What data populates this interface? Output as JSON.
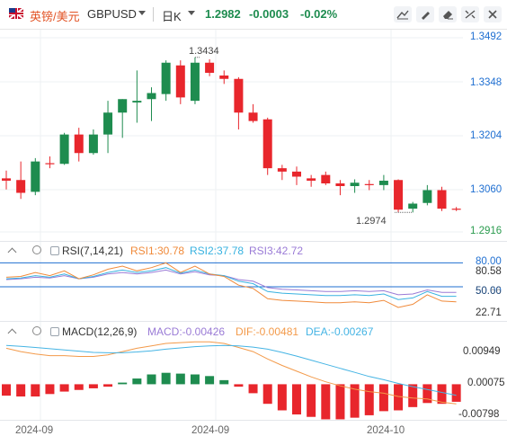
{
  "header": {
    "flag_icon": "uk-us-flag-icon",
    "name": "英镑/美元",
    "symbol": "GBPUSD",
    "period": "日K",
    "last": "1.2982",
    "change": "-0.0003",
    "change_pct": "-0.02%"
  },
  "toolbar": [
    "line-tool-icon",
    "draw-tool-icon",
    "eraser-tool-icon",
    "fullscreen-icon",
    "close-icon"
  ],
  "price_axis": [
    "1.3492",
    "1.3348",
    "1.3204",
    "1.3060",
    "1.2916"
  ],
  "current_price": "1.2916",
  "annotations": {
    "high": "1.3434",
    "low": "1.2974"
  },
  "rsi": {
    "title": "RSI(7,14,21)",
    "rsi1": "RSI1:30.78",
    "rsi2": "RSI2:37.78",
    "rsi3": "RSI3:42.72",
    "axis": [
      "80.00",
      "80.58",
      "50.00",
      "50.66",
      "22.71"
    ]
  },
  "macd": {
    "title": "MACD(12,26,9)",
    "macd": "MACD:-0.00426",
    "dif": "DIF:-0.00481",
    "dea": "DEA:-0.00267",
    "axis": [
      "0.00949",
      "0.00075",
      "-0.00798"
    ]
  },
  "time_axis": [
    "2024-09",
    "2024-09",
    "2024-10"
  ],
  "colors": {
    "up": "#1e8c4f",
    "down": "#e8262c",
    "rsi1": "#f08a3a",
    "rsi2": "#38b2e0",
    "rsi3": "#9a7bd6",
    "dif": "#f39a4a",
    "dea": "#45b4e4",
    "axis_blue": "#1f6fd1",
    "axis_green": "#2a9b4e"
  },
  "chart_data": {
    "type": "candlestick",
    "candles": [
      {
        "o": 1.3075,
        "h": 1.3098,
        "l": 1.3042,
        "c": 1.3068
      },
      {
        "o": 1.307,
        "h": 1.3125,
        "l": 1.3014,
        "c": 1.3032
      },
      {
        "o": 1.3035,
        "h": 1.3135,
        "l": 1.3025,
        "c": 1.3125
      },
      {
        "o": 1.312,
        "h": 1.314,
        "l": 1.3105,
        "c": 1.3118
      },
      {
        "o": 1.3118,
        "h": 1.321,
        "l": 1.3115,
        "c": 1.3205
      },
      {
        "o": 1.3205,
        "h": 1.3225,
        "l": 1.3125,
        "c": 1.315
      },
      {
        "o": 1.315,
        "h": 1.322,
        "l": 1.3145,
        "c": 1.3205
      },
      {
        "o": 1.3205,
        "h": 1.3305,
        "l": 1.315,
        "c": 1.327
      },
      {
        "o": 1.327,
        "h": 1.331,
        "l": 1.3195,
        "c": 1.331
      },
      {
        "o": 1.33,
        "h": 1.3395,
        "l": 1.324,
        "c": 1.3305
      },
      {
        "o": 1.331,
        "h": 1.3345,
        "l": 1.3245,
        "c": 1.3328
      },
      {
        "o": 1.3325,
        "h": 1.3425,
        "l": 1.3305,
        "c": 1.3418
      },
      {
        "o": 1.341,
        "h": 1.3425,
        "l": 1.3295,
        "c": 1.3315
      },
      {
        "o": 1.3305,
        "h": 1.3434,
        "l": 1.3295,
        "c": 1.3418
      },
      {
        "o": 1.3418,
        "h": 1.3428,
        "l": 1.3378,
        "c": 1.3388
      },
      {
        "o": 1.338,
        "h": 1.3395,
        "l": 1.3355,
        "c": 1.337
      },
      {
        "o": 1.337,
        "h": 1.3375,
        "l": 1.322,
        "c": 1.327
      },
      {
        "o": 1.327,
        "h": 1.3295,
        "l": 1.324,
        "c": 1.3245
      },
      {
        "o": 1.325,
        "h": 1.3255,
        "l": 1.3085,
        "c": 1.3105
      },
      {
        "o": 1.3105,
        "h": 1.3115,
        "l": 1.307,
        "c": 1.3095
      },
      {
        "o": 1.3095,
        "h": 1.311,
        "l": 1.3055,
        "c": 1.308
      },
      {
        "o": 1.3075,
        "h": 1.3085,
        "l": 1.305,
        "c": 1.3068
      },
      {
        "o": 1.3085,
        "h": 1.3095,
        "l": 1.3055,
        "c": 1.306
      },
      {
        "o": 1.306,
        "h": 1.307,
        "l": 1.3025,
        "c": 1.3052
      },
      {
        "o": 1.3052,
        "h": 1.3072,
        "l": 1.3032,
        "c": 1.3062
      },
      {
        "o": 1.3058,
        "h": 1.307,
        "l": 1.304,
        "c": 1.3055
      },
      {
        "o": 1.3055,
        "h": 1.3085,
        "l": 1.304,
        "c": 1.3068
      },
      {
        "o": 1.307,
        "h": 1.3072,
        "l": 1.2975,
        "c": 1.2982
      },
      {
        "o": 1.2985,
        "h": 1.3005,
        "l": 1.2974,
        "c": 1.3
      },
      {
        "o": 1.3002,
        "h": 1.3055,
        "l": 1.2995,
        "c": 1.304
      },
      {
        "o": 1.304,
        "h": 1.305,
        "l": 1.2978,
        "c": 1.2985
      },
      {
        "o": 1.2985,
        "h": 1.299,
        "l": 1.2978,
        "c": 1.2982
      }
    ],
    "ylim": [
      1.2916,
      1.3492
    ],
    "rsi_ylim": [
      15,
      85
    ],
    "rsi1": [
      62,
      63,
      68,
      64,
      70,
      60,
      65,
      72,
      76,
      70,
      74,
      80,
      68,
      76,
      66,
      63,
      52,
      48,
      35,
      33,
      32,
      31,
      30,
      30,
      31,
      30,
      33,
      24,
      28,
      40,
      32,
      31
    ],
    "rsi2": [
      60,
      61,
      64,
      62,
      66,
      60,
      63,
      68,
      71,
      68,
      70,
      74,
      67,
      71,
      66,
      64,
      57,
      54,
      44,
      42,
      41,
      40,
      39,
      39,
      40,
      39,
      41,
      34,
      36,
      44,
      38,
      38
    ],
    "rsi3": [
      59,
      60,
      62,
      61,
      64,
      60,
      62,
      66,
      68,
      66,
      68,
      71,
      66,
      69,
      65,
      64,
      59,
      57,
      49,
      47,
      46,
      45,
      44,
      44,
      45,
      44,
      45,
      40,
      41,
      46,
      43,
      43
    ],
    "macd_ylim": [
      -0.0085,
      0.01
    ],
    "dif": [
      0.0088,
      0.008,
      0.0074,
      0.007,
      0.007,
      0.0068,
      0.0068,
      0.0072,
      0.008,
      0.0088,
      0.0094,
      0.01,
      0.0102,
      0.0104,
      0.0104,
      0.01,
      0.009,
      0.008,
      0.0062,
      0.0046,
      0.0032,
      0.0018,
      0.0006,
      -0.0004,
      -0.0012,
      -0.0018,
      -0.0022,
      -0.003,
      -0.0034,
      -0.0036,
      -0.0044,
      -0.0048
    ],
    "dea": [
      0.0095,
      0.0093,
      0.009,
      0.0087,
      0.0084,
      0.0081,
      0.0078,
      0.0077,
      0.0077,
      0.0079,
      0.0082,
      0.0086,
      0.0089,
      0.0092,
      0.0094,
      0.0095,
      0.0094,
      0.0091,
      0.0086,
      0.0078,
      0.0069,
      0.0059,
      0.0049,
      0.0039,
      0.0029,
      0.0019,
      0.0011,
      0.0002,
      -0.0006,
      -0.0013,
      -0.002,
      -0.0027
    ],
    "macd": [
      -0.0028,
      -0.003,
      -0.003,
      -0.0024,
      -0.0018,
      -0.0014,
      -0.001,
      -0.0006,
      0.0004,
      0.0014,
      0.0024,
      0.0028,
      0.0026,
      0.0024,
      0.002,
      0.001,
      -0.0006,
      -0.0022,
      -0.0048,
      -0.0064,
      -0.0074,
      -0.008,
      -0.0086,
      -0.0086,
      -0.0082,
      -0.0076,
      -0.0066,
      -0.0064,
      -0.0056,
      -0.0046,
      -0.0048,
      -0.0043
    ]
  }
}
